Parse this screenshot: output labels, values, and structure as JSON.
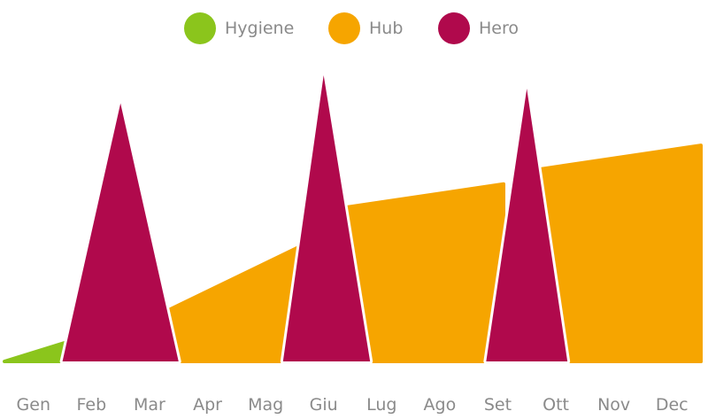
{
  "chart_data": {
    "type": "area",
    "legend": [
      {
        "name": "Hygiene",
        "color": "#8bc51c"
      },
      {
        "name": "Hub",
        "color": "#f6a500"
      },
      {
        "name": "Hero",
        "color": "#b0094c"
      }
    ],
    "categories": [
      "Gen",
      "Feb",
      "Mar",
      "Apr",
      "Mag",
      "Giu",
      "Lug",
      "Ago",
      "Set",
      "Ott",
      "Nov",
      "Dec"
    ],
    "series": [
      {
        "name": "Hygiene",
        "color": "#8bc51c",
        "segments": [
          {
            "from": 0.0,
            "to": 1.4,
            "start": 0.0,
            "end": 8.8
          },
          {
            "from": 3.2,
            "to": 5.3,
            "start": 14.6,
            "end": 21.2
          },
          {
            "from": 6.5,
            "to": 8.6,
            "start": 27.5,
            "end": 32.4
          },
          {
            "from": 9.8,
            "to": 12.0,
            "start": 38.4,
            "end": 45.3
          }
        ]
      },
      {
        "name": "Hub",
        "color": "#f6a500",
        "segments": [
          {
            "from": 1.0,
            "to": 5.3,
            "start": 0.0,
            "end": 42.2
          },
          {
            "from": 5.7,
            "to": 8.6,
            "start": 53.3,
            "end": 62.0
          },
          {
            "from": 8.9,
            "to": 12.0,
            "start": 66.2,
            "end": 75.5
          }
        ]
      },
      {
        "name": "Hero",
        "color": "#b0094c",
        "peaks": [
          {
            "center": 2.0,
            "left": 1.0,
            "right": 3.0,
            "value": 90.2
          },
          {
            "center": 5.5,
            "left": 4.8,
            "right": 6.3,
            "value": 100.0
          },
          {
            "center": 9.0,
            "left": 8.3,
            "right": 9.7,
            "value": 95.3
          }
        ]
      }
    ],
    "ylim": [
      0,
      100
    ],
    "grid": false,
    "legend_position": "top-center"
  }
}
